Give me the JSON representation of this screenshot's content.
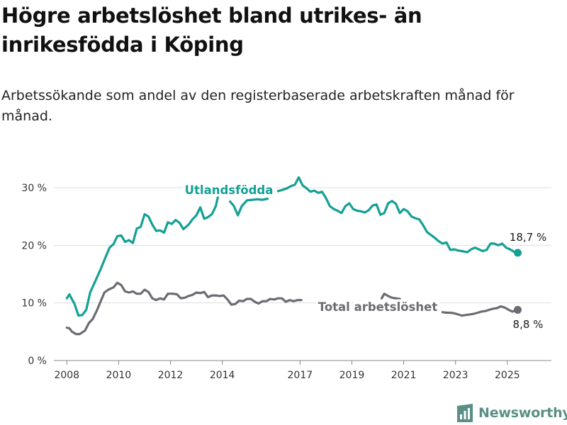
{
  "title": "Högre arbetslöshet bland utrikes- än inrikesfödda i Köping",
  "subtitle": "Arbetssökande som andel av den registerbaserade arbetskraften månad för månad.",
  "brand": {
    "name": "Newsworthy",
    "icon": "newsworthy-logo-icon"
  },
  "colors": {
    "utlandsfodda": "#14a095",
    "total": "#6b6b72",
    "grid": "#dddddd"
  },
  "chart_data": {
    "type": "line",
    "title": "Högre arbetslöshet bland utrikes- än inrikesfödda i Köping",
    "subtitle": "Arbetssökande som andel av den registerbaserade arbetskraften månad för månad.",
    "xlabel": "",
    "ylabel": "",
    "xlim": [
      2007.5,
      2026.7
    ],
    "ylim": [
      0,
      30
    ],
    "y_ticks": [
      0,
      10,
      20,
      30
    ],
    "y_tick_labels": [
      "0 %",
      "10 %",
      "20 %",
      "30 %"
    ],
    "x_ticks": [
      2008,
      2010,
      2012,
      2014,
      2017,
      2019,
      2021,
      2023,
      2025
    ],
    "x_tick_labels": [
      "2008",
      "2010",
      "2012",
      "2014",
      "2017",
      "2019",
      "2021",
      "2023",
      "2025"
    ],
    "grid": "horizontal",
    "series": [
      {
        "name": "Utlandsfödda",
        "end_label": "18,7 %",
        "points": [
          [
            2008.0,
            10.8
          ],
          [
            2008.1,
            11.5
          ],
          [
            2008.3,
            9.8
          ],
          [
            2008.45,
            7.8
          ],
          [
            2008.6,
            7.9
          ],
          [
            2008.75,
            8.8
          ],
          [
            2008.9,
            11.8
          ],
          [
            2009.1,
            13.8
          ],
          [
            2009.3,
            15.8
          ],
          [
            2009.5,
            18.0
          ],
          [
            2009.65,
            19.6
          ],
          [
            2009.8,
            20.2
          ],
          [
            2009.95,
            21.6
          ],
          [
            2010.1,
            21.7
          ],
          [
            2010.25,
            20.6
          ],
          [
            2010.4,
            20.9
          ],
          [
            2010.55,
            20.4
          ],
          [
            2010.7,
            22.9
          ],
          [
            2010.85,
            23.2
          ],
          [
            2011.0,
            25.4
          ],
          [
            2011.15,
            25.0
          ],
          [
            2011.3,
            23.6
          ],
          [
            2011.45,
            22.5
          ],
          [
            2011.6,
            22.6
          ],
          [
            2011.75,
            22.2
          ],
          [
            2011.9,
            24.0
          ],
          [
            2012.05,
            23.7
          ],
          [
            2012.2,
            24.4
          ],
          [
            2012.35,
            23.9
          ],
          [
            2012.5,
            22.8
          ],
          [
            2012.7,
            23.6
          ],
          [
            2012.85,
            24.5
          ],
          [
            2013.0,
            25.2
          ],
          [
            2013.15,
            26.6
          ],
          [
            2013.3,
            24.6
          ],
          [
            2013.45,
            24.9
          ],
          [
            2013.6,
            25.4
          ],
          [
            2013.75,
            26.8
          ],
          [
            2013.9,
            29.8
          ],
          [
            2014.3,
            27.6
          ],
          [
            2014.45,
            26.8
          ],
          [
            2014.6,
            25.2
          ],
          [
            2014.75,
            26.8
          ],
          [
            2014.95,
            27.8
          ],
          [
            2015.15,
            27.9
          ],
          [
            2015.35,
            28.0
          ],
          [
            2015.55,
            27.9
          ],
          [
            2015.75,
            28.1
          ],
          [
            2016.15,
            29.4
          ],
          [
            2016.3,
            29.6
          ],
          [
            2016.5,
            29.9
          ],
          [
            2016.65,
            30.3
          ],
          [
            2016.8,
            30.5
          ],
          [
            2016.95,
            31.8
          ],
          [
            2017.1,
            30.4
          ],
          [
            2017.25,
            29.9
          ],
          [
            2017.4,
            29.3
          ],
          [
            2017.55,
            29.5
          ],
          [
            2017.7,
            29.1
          ],
          [
            2017.85,
            29.3
          ],
          [
            2018.0,
            28.2
          ],
          [
            2018.15,
            26.8
          ],
          [
            2018.3,
            26.3
          ],
          [
            2018.45,
            26.0
          ],
          [
            2018.6,
            25.6
          ],
          [
            2018.75,
            26.8
          ],
          [
            2018.9,
            27.3
          ],
          [
            2019.05,
            26.3
          ],
          [
            2019.2,
            26.0
          ],
          [
            2019.35,
            25.9
          ],
          [
            2019.5,
            25.7
          ],
          [
            2019.65,
            26.1
          ],
          [
            2019.8,
            26.9
          ],
          [
            2019.95,
            27.1
          ],
          [
            2020.1,
            25.3
          ],
          [
            2020.25,
            25.6
          ],
          [
            2020.4,
            27.3
          ],
          [
            2020.55,
            27.7
          ],
          [
            2020.7,
            27.2
          ],
          [
            2020.85,
            25.6
          ],
          [
            2021.0,
            26.3
          ],
          [
            2021.15,
            25.9
          ],
          [
            2021.3,
            25.0
          ],
          [
            2021.45,
            24.7
          ],
          [
            2021.6,
            24.5
          ],
          [
            2021.75,
            23.5
          ],
          [
            2021.9,
            22.3
          ],
          [
            2022.05,
            21.8
          ],
          [
            2022.2,
            21.3
          ],
          [
            2022.35,
            20.7
          ],
          [
            2022.5,
            20.3
          ],
          [
            2022.65,
            20.5
          ],
          [
            2022.8,
            19.2
          ],
          [
            2022.95,
            19.3
          ],
          [
            2023.1,
            19.1
          ],
          [
            2023.25,
            19.0
          ],
          [
            2023.45,
            18.8
          ],
          [
            2023.6,
            19.3
          ],
          [
            2023.75,
            19.6
          ],
          [
            2023.9,
            19.3
          ],
          [
            2024.05,
            19.0
          ],
          [
            2024.2,
            19.2
          ],
          [
            2024.35,
            20.3
          ],
          [
            2024.5,
            20.3
          ],
          [
            2024.65,
            20.0
          ],
          [
            2024.8,
            20.3
          ],
          [
            2024.95,
            19.6
          ],
          [
            2025.1,
            19.3
          ],
          [
            2025.25,
            18.9
          ],
          [
            2025.4,
            18.7
          ]
        ]
      },
      {
        "name": "Total arbetslöshet",
        "end_label": "8,8 %",
        "points": [
          [
            2008.0,
            5.7
          ],
          [
            2008.1,
            5.6
          ],
          [
            2008.2,
            5.0
          ],
          [
            2008.35,
            4.6
          ],
          [
            2008.5,
            4.6
          ],
          [
            2008.7,
            5.2
          ],
          [
            2008.85,
            6.5
          ],
          [
            2009.0,
            7.2
          ],
          [
            2009.15,
            8.6
          ],
          [
            2009.3,
            10.2
          ],
          [
            2009.45,
            11.8
          ],
          [
            2009.6,
            12.3
          ],
          [
            2009.8,
            12.7
          ],
          [
            2009.95,
            13.5
          ],
          [
            2010.1,
            13.1
          ],
          [
            2010.25,
            12.0
          ],
          [
            2010.4,
            11.8
          ],
          [
            2010.55,
            12.0
          ],
          [
            2010.7,
            11.6
          ],
          [
            2010.85,
            11.6
          ],
          [
            2011.0,
            12.3
          ],
          [
            2011.15,
            11.9
          ],
          [
            2011.3,
            10.8
          ],
          [
            2011.45,
            10.5
          ],
          [
            2011.6,
            10.8
          ],
          [
            2011.75,
            10.6
          ],
          [
            2011.9,
            11.6
          ],
          [
            2012.1,
            11.6
          ],
          [
            2012.25,
            11.5
          ],
          [
            2012.4,
            10.8
          ],
          [
            2012.55,
            10.9
          ],
          [
            2012.7,
            11.2
          ],
          [
            2012.85,
            11.4
          ],
          [
            2013.0,
            11.8
          ],
          [
            2013.15,
            11.7
          ],
          [
            2013.3,
            11.9
          ],
          [
            2013.45,
            11.0
          ],
          [
            2013.6,
            11.3
          ],
          [
            2013.75,
            11.3
          ],
          [
            2013.9,
            11.2
          ],
          [
            2014.05,
            11.3
          ],
          [
            2014.2,
            10.6
          ],
          [
            2014.35,
            9.7
          ],
          [
            2014.5,
            9.8
          ],
          [
            2014.65,
            10.4
          ],
          [
            2014.8,
            10.3
          ],
          [
            2014.95,
            10.7
          ],
          [
            2015.1,
            10.7
          ],
          [
            2015.25,
            10.2
          ],
          [
            2015.4,
            9.9
          ],
          [
            2015.55,
            10.3
          ],
          [
            2015.7,
            10.3
          ],
          [
            2015.85,
            10.7
          ],
          [
            2016.0,
            10.6
          ],
          [
            2016.15,
            10.8
          ],
          [
            2016.3,
            10.8
          ],
          [
            2016.45,
            10.2
          ],
          [
            2016.6,
            10.5
          ],
          [
            2016.75,
            10.3
          ],
          [
            2016.9,
            10.5
          ],
          [
            2017.05,
            10.5
          ],
          [
            2020.15,
            10.8
          ],
          [
            2020.25,
            11.6
          ],
          [
            2020.4,
            11.2
          ],
          [
            2020.55,
            10.9
          ],
          [
            2020.7,
            10.8
          ],
          [
            2020.85,
            10.7
          ],
          [
            2022.5,
            8.4
          ],
          [
            2022.65,
            8.3
          ],
          [
            2022.8,
            8.3
          ],
          [
            2022.95,
            8.2
          ],
          [
            2023.1,
            8.0
          ],
          [
            2023.25,
            7.8
          ],
          [
            2023.4,
            7.9
          ],
          [
            2023.55,
            8.0
          ],
          [
            2023.7,
            8.1
          ],
          [
            2023.85,
            8.3
          ],
          [
            2024.0,
            8.5
          ],
          [
            2024.15,
            8.6
          ],
          [
            2024.3,
            8.8
          ],
          [
            2024.45,
            9.0
          ],
          [
            2024.6,
            9.1
          ],
          [
            2024.75,
            9.4
          ],
          [
            2024.9,
            9.2
          ],
          [
            2025.05,
            8.8
          ],
          [
            2025.2,
            8.5
          ],
          [
            2025.4,
            8.8
          ]
        ]
      }
    ]
  }
}
